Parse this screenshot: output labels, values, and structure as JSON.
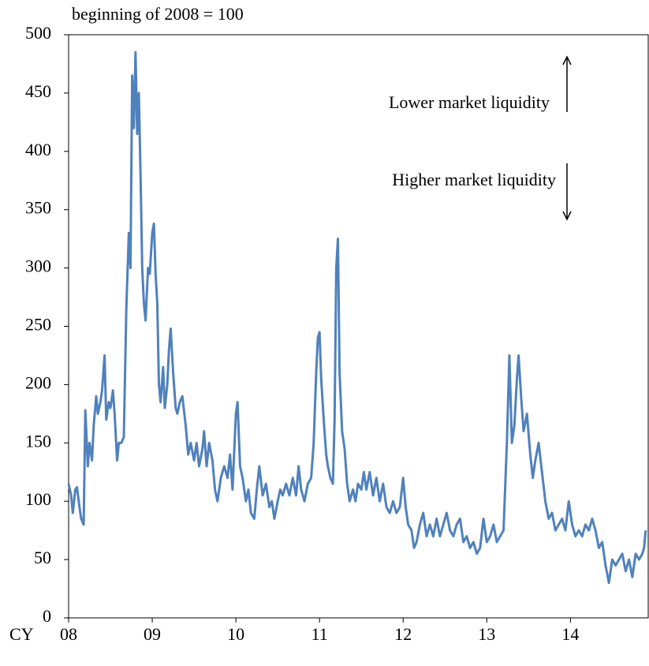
{
  "chart_data": {
    "type": "line",
    "y_label": "beginning of 2008  = 100",
    "x_label": "CY",
    "annotations": [
      "Lower market liquidity",
      "Higher market liquidity"
    ],
    "color": "#4f81bd",
    "xlim": [
      2008,
      2014.93
    ],
    "xticks": [
      {
        "value": 2008,
        "label": "08"
      },
      {
        "value": 2009,
        "label": "09"
      },
      {
        "value": 2010,
        "label": "10"
      },
      {
        "value": 2011,
        "label": "11"
      },
      {
        "value": 2012,
        "label": "12"
      },
      {
        "value": 2013,
        "label": "13"
      },
      {
        "value": 2014,
        "label": "14"
      }
    ],
    "ylim": [
      0,
      500
    ],
    "yticks": [
      0,
      50,
      100,
      150,
      200,
      250,
      300,
      350,
      400,
      450,
      500
    ],
    "grid": false,
    "x": [
      2008.0,
      2008.03,
      2008.05,
      2008.08,
      2008.1,
      2008.13,
      2008.15,
      2008.18,
      2008.2,
      2008.23,
      2008.25,
      2008.28,
      2008.3,
      2008.33,
      2008.35,
      2008.38,
      2008.4,
      2008.43,
      2008.45,
      2008.48,
      2008.5,
      2008.53,
      2008.55,
      2008.58,
      2008.6,
      2008.63,
      2008.66,
      2008.69,
      2008.72,
      2008.74,
      2008.76,
      2008.78,
      2008.8,
      2008.82,
      2008.84,
      2008.86,
      2008.88,
      2008.9,
      2008.92,
      2008.95,
      2008.97,
      2009.0,
      2009.02,
      2009.04,
      2009.06,
      2009.08,
      2009.1,
      2009.13,
      2009.15,
      2009.18,
      2009.2,
      2009.22,
      2009.25,
      2009.28,
      2009.3,
      2009.33,
      2009.36,
      2009.4,
      2009.43,
      2009.46,
      2009.5,
      2009.53,
      2009.56,
      2009.6,
      2009.62,
      2009.65,
      2009.68,
      2009.72,
      2009.75,
      2009.78,
      2009.82,
      2009.86,
      2009.9,
      2009.93,
      2009.96,
      2010.0,
      2010.02,
      2010.05,
      2010.08,
      2010.12,
      2010.15,
      2010.18,
      2010.22,
      2010.25,
      2010.28,
      2010.32,
      2010.36,
      2010.4,
      2010.43,
      2010.46,
      2010.5,
      2010.53,
      2010.56,
      2010.6,
      2010.64,
      2010.68,
      2010.72,
      2010.75,
      2010.78,
      2010.82,
      2010.86,
      2010.9,
      2010.93,
      2010.96,
      2010.98,
      2011.0,
      2011.02,
      2011.05,
      2011.08,
      2011.1,
      2011.13,
      2011.16,
      2011.18,
      2011.2,
      2011.22,
      2011.24,
      2011.27,
      2011.3,
      2011.33,
      2011.36,
      2011.4,
      2011.43,
      2011.46,
      2011.5,
      2011.53,
      2011.56,
      2011.6,
      2011.64,
      2011.68,
      2011.72,
      2011.76,
      2011.8,
      2011.84,
      2011.88,
      2011.92,
      2011.96,
      2012.0,
      2012.03,
      2012.06,
      2012.1,
      2012.13,
      2012.16,
      2012.2,
      2012.24,
      2012.28,
      2012.32,
      2012.36,
      2012.4,
      2012.44,
      2012.48,
      2012.52,
      2012.56,
      2012.6,
      2012.64,
      2012.68,
      2012.72,
      2012.76,
      2012.8,
      2012.84,
      2012.88,
      2012.92,
      2012.96,
      2013.0,
      2013.04,
      2013.08,
      2013.12,
      2013.16,
      2013.2,
      2013.24,
      2013.27,
      2013.3,
      2013.33,
      2013.36,
      2013.38,
      2013.41,
      2013.44,
      2013.48,
      2013.52,
      2013.55,
      2013.58,
      2013.62,
      2013.66,
      2013.7,
      2013.74,
      2013.78,
      2013.82,
      2013.86,
      2013.9,
      2013.94,
      2013.98,
      2014.02,
      2014.06,
      2014.1,
      2014.14,
      2014.18,
      2014.22,
      2014.26,
      2014.3,
      2014.34,
      2014.38,
      2014.42,
      2014.46,
      2014.5,
      2014.54,
      2014.58,
      2014.62,
      2014.66,
      2014.7,
      2014.74,
      2014.78,
      2014.82,
      2014.86,
      2014.88,
      2014.9
    ],
    "values": [
      115,
      105,
      90,
      110,
      112,
      95,
      85,
      80,
      178,
      130,
      150,
      135,
      165,
      190,
      175,
      185,
      195,
      225,
      170,
      185,
      180,
      195,
      175,
      135,
      150,
      150,
      155,
      265,
      330,
      300,
      465,
      420,
      485,
      415,
      450,
      380,
      300,
      270,
      255,
      300,
      295,
      330,
      338,
      295,
      270,
      200,
      185,
      215,
      180,
      200,
      230,
      248,
      210,
      180,
      175,
      185,
      190,
      165,
      140,
      150,
      135,
      150,
      130,
      145,
      160,
      130,
      150,
      135,
      110,
      100,
      120,
      130,
      120,
      140,
      110,
      175,
      185,
      130,
      120,
      100,
      110,
      90,
      85,
      110,
      130,
      105,
      115,
      95,
      100,
      85,
      100,
      110,
      105,
      115,
      105,
      120,
      105,
      130,
      110,
      100,
      115,
      120,
      150,
      210,
      240,
      245,
      205,
      170,
      140,
      130,
      120,
      115,
      170,
      300,
      325,
      210,
      160,
      145,
      115,
      100,
      110,
      100,
      115,
      110,
      125,
      110,
      125,
      105,
      120,
      100,
      115,
      95,
      90,
      100,
      90,
      95,
      120,
      95,
      80,
      75,
      60,
      65,
      80,
      90,
      70,
      80,
      70,
      85,
      70,
      80,
      90,
      75,
      70,
      80,
      85,
      65,
      70,
      60,
      65,
      55,
      60,
      85,
      65,
      70,
      80,
      65,
      70,
      75,
      150,
      225,
      150,
      165,
      205,
      225,
      190,
      160,
      175,
      140,
      120,
      135,
      150,
      125,
      100,
      85,
      90,
      75,
      80,
      85,
      75,
      100,
      80,
      70,
      75,
      70,
      80,
      75,
      85,
      75,
      60,
      65,
      45,
      30,
      50,
      45,
      50,
      55,
      40,
      50,
      35,
      55,
      50,
      55,
      60,
      75
    ]
  }
}
